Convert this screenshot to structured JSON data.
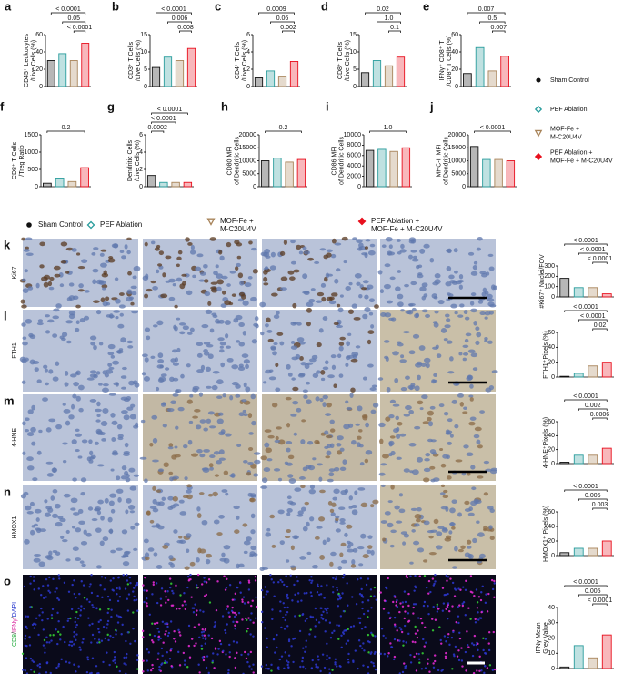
{
  "legend": [
    {
      "name": [
        "Sham Control"
      ],
      "color": "#111111",
      "marker": "circle"
    },
    {
      "name": [
        "PEF Ablation"
      ],
      "color": "#2a9d9d",
      "marker": "diamond-open"
    },
    {
      "name": [
        "MOF-Fe +",
        "M-C20U4V"
      ],
      "color": "#a8845a",
      "marker": "triangle-open"
    },
    {
      "name": [
        "PEF Ablation +",
        "MOF-Fe + M-C20U4V"
      ],
      "color": "#e8101e",
      "marker": "diamond"
    }
  ],
  "chart_data": [
    {
      "type": "bar",
      "panel": "a",
      "ylabel": [
        "CD45⁺ Leukocytes",
        "/Live Cells (%)"
      ],
      "ylim": [
        0,
        60
      ],
      "yticks": [
        0,
        20,
        40,
        60
      ],
      "values": [
        30,
        38,
        30,
        50
      ],
      "comparisons": [
        {
          "groups": [
            0,
            3
          ],
          "label": "< 0.0001"
        },
        {
          "groups": [
            1,
            3
          ],
          "label": "0.05"
        },
        {
          "groups": [
            2,
            3
          ],
          "label": "< 0.0001"
        }
      ]
    },
    {
      "type": "bar",
      "panel": "b",
      "ylabel": [
        "CD3⁺ T Cells",
        "/Live Cells (%)"
      ],
      "ylim": [
        0,
        15
      ],
      "yticks": [
        0,
        5,
        10,
        15
      ],
      "values": [
        5.5,
        8.5,
        7.5,
        11
      ],
      "comparisons": [
        {
          "groups": [
            0,
            3
          ],
          "label": "< 0.0001"
        },
        {
          "groups": [
            1,
            3
          ],
          "label": "0.006"
        },
        {
          "groups": [
            2,
            3
          ],
          "label": "0.008"
        }
      ]
    },
    {
      "type": "bar",
      "panel": "c",
      "ylabel": [
        "CD4⁺ T Cells",
        "/Live Cells (%)"
      ],
      "ylim": [
        0,
        6
      ],
      "yticks": [
        0,
        2,
        4,
        6
      ],
      "values": [
        1,
        1.8,
        1.2,
        2.9
      ],
      "comparisons": [
        {
          "groups": [
            0,
            3
          ],
          "label": "0.0009"
        },
        {
          "groups": [
            1,
            3
          ],
          "label": "0.06"
        },
        {
          "groups": [
            2,
            3
          ],
          "label": "0.002"
        }
      ]
    },
    {
      "type": "bar",
      "panel": "d",
      "ylabel": [
        "CD8⁺ T Cells",
        "/Live Cells (%)"
      ],
      "ylim": [
        0,
        15
      ],
      "yticks": [
        0,
        5,
        10,
        15
      ],
      "values": [
        4,
        7.5,
        6,
        8.5
      ],
      "comparisons": [
        {
          "groups": [
            0,
            3
          ],
          "label": "0.02"
        },
        {
          "groups": [
            1,
            3
          ],
          "label": "1.0"
        },
        {
          "groups": [
            2,
            3
          ],
          "label": "0.1"
        }
      ]
    },
    {
      "type": "bar",
      "panel": "e",
      "ylabel": [
        "IFNγ⁺ CD8⁺ T",
        "/CD8⁺ T Cells (%)"
      ],
      "ylim": [
        0,
        60
      ],
      "yticks": [
        0,
        20,
        40,
        60
      ],
      "values": [
        15,
        45,
        18,
        35
      ],
      "comparisons": [
        {
          "groups": [
            0,
            3
          ],
          "label": "0.007"
        },
        {
          "groups": [
            1,
            3
          ],
          "label": "0.5"
        },
        {
          "groups": [
            2,
            3
          ],
          "label": "0.007"
        }
      ]
    },
    {
      "type": "bar",
      "panel": "f",
      "ylabel": [
        "CD8⁺ T Cells",
        "/Treg Ratio"
      ],
      "ylim": [
        0,
        1500
      ],
      "yticks": [
        0,
        500,
        1000,
        1500
      ],
      "values": [
        100,
        250,
        150,
        550
      ],
      "comparisons": [
        {
          "groups": [
            0,
            3
          ],
          "label": "0.2"
        }
      ]
    },
    {
      "type": "bar",
      "panel": "g",
      "ylabel": [
        "Dendritic Cells",
        "/Live Cells (%)"
      ],
      "ylim": [
        0,
        6
      ],
      "yticks": [
        0,
        2,
        4,
        6
      ],
      "values": [
        1.3,
        0.5,
        0.5,
        0.5
      ],
      "comparisons": [
        {
          "groups": [
            0,
            3
          ],
          "label": "< 0.0001"
        },
        {
          "groups": [
            0,
            2
          ],
          "label": "< 0.0001"
        },
        {
          "groups": [
            0,
            1
          ],
          "label": "0.0002"
        }
      ]
    },
    {
      "type": "bar",
      "panel": "h",
      "ylabel": [
        "CD80 MFI",
        "of Dendritic Cells"
      ],
      "ylim": [
        0,
        20000
      ],
      "yticks": [
        0,
        5000,
        10000,
        15000,
        20000
      ],
      "values": [
        10000,
        11000,
        9500,
        10500
      ],
      "comparisons": [
        {
          "groups": [
            0,
            3
          ],
          "label": "0.2"
        }
      ]
    },
    {
      "type": "bar",
      "panel": "i",
      "ylabel": [
        "CD86 MFI",
        "of Dendritic Cells"
      ],
      "ylim": [
        0,
        10000
      ],
      "yticks": [
        0,
        2000,
        4000,
        6000,
        8000,
        10000
      ],
      "values": [
        7000,
        7200,
        6800,
        7500
      ],
      "comparisons": [
        {
          "groups": [
            0,
            3
          ],
          "label": "1.0"
        }
      ]
    },
    {
      "type": "bar",
      "panel": "j",
      "ylabel": [
        "MHC-II MFI",
        "of Dendritic Cells"
      ],
      "ylim": [
        0,
        20000
      ],
      "yticks": [
        0,
        5000,
        10000,
        15000,
        20000
      ],
      "values": [
        15500,
        10500,
        10500,
        10000
      ],
      "comparisons": [
        {
          "groups": [
            0,
            3
          ],
          "label": "< 0.0001"
        }
      ]
    },
    {
      "type": "bar",
      "panel": "k",
      "row_label": [
        {
          "text": "Ki67",
          "color": "#222222"
        }
      ],
      "ylabel": [
        "#Ki67⁺ Nuclei/FOV"
      ],
      "ylim": [
        0,
        300
      ],
      "yticks": [
        0,
        100,
        200,
        300
      ],
      "values": [
        180,
        90,
        90,
        30
      ],
      "comparisons": [
        {
          "groups": [
            0,
            3
          ],
          "label": "< 0.0001"
        },
        {
          "groups": [
            1,
            3
          ],
          "label": "< 0.0001"
        },
        {
          "groups": [
            2,
            3
          ],
          "label": "< 0.0001"
        }
      ]
    },
    {
      "type": "bar",
      "panel": "l",
      "row_label": [
        {
          "text": "FTH1",
          "color": "#222222"
        }
      ],
      "ylabel": [
        "FTH1⁺Pixels (%)"
      ],
      "ylim": [
        0,
        60
      ],
      "yticks": [
        0,
        20,
        40,
        60
      ],
      "values": [
        1,
        5,
        15,
        20
      ],
      "comparisons": [
        {
          "groups": [
            0,
            3
          ],
          "label": "< 0.0001"
        },
        {
          "groups": [
            1,
            3
          ],
          "label": "< 0.0001"
        },
        {
          "groups": [
            2,
            3
          ],
          "label": "0.02"
        }
      ]
    },
    {
      "type": "bar",
      "panel": "m",
      "row_label": [
        {
          "text": "4-HNE",
          "color": "#222222"
        }
      ],
      "ylabel": [
        "4-HNE⁺Pixels (%)"
      ],
      "ylim": [
        0,
        60
      ],
      "yticks": [
        0,
        20,
        40,
        60
      ],
      "values": [
        2,
        12,
        12,
        22
      ],
      "comparisons": [
        {
          "groups": [
            0,
            3
          ],
          "label": "< 0.0001"
        },
        {
          "groups": [
            1,
            3
          ],
          "label": "0.002"
        },
        {
          "groups": [
            2,
            3
          ],
          "label": "0.0006"
        }
      ]
    },
    {
      "type": "bar",
      "panel": "n",
      "row_label": [
        {
          "text": "HMOX1",
          "color": "#222222"
        }
      ],
      "ylabel": [
        "HMOX1⁺ Pixels (%)"
      ],
      "ylim": [
        0,
        60
      ],
      "yticks": [
        0,
        20,
        40,
        60
      ],
      "values": [
        4,
        10,
        10,
        20
      ],
      "comparisons": [
        {
          "groups": [
            0,
            3
          ],
          "label": "< 0.0001"
        },
        {
          "groups": [
            1,
            3
          ],
          "label": "0.005"
        },
        {
          "groups": [
            2,
            3
          ],
          "label": "0.003"
        }
      ]
    },
    {
      "type": "bar",
      "panel": "o",
      "row_label": [
        {
          "text": "CD8",
          "color": "#1fa83a"
        },
        {
          "text": "/",
          "color": "#222222"
        },
        {
          "text": "IFNγ",
          "color": "#d81b9a"
        },
        {
          "text": "/",
          "color": "#222222"
        },
        {
          "text": "DAPI",
          "color": "#2233cc"
        }
      ],
      "ylabel": [
        "IFNγ Mean",
        "Grey Value"
      ],
      "ylim": [
        0,
        40
      ],
      "yticks": [
        0,
        10,
        20,
        30,
        40
      ],
      "values": [
        1,
        15,
        7,
        22
      ],
      "comparisons": [
        {
          "groups": [
            0,
            3
          ],
          "label": "< 0.0001"
        },
        {
          "groups": [
            1,
            3
          ],
          "label": "0.005"
        },
        {
          "groups": [
            2,
            3
          ],
          "label": "< 0.0001"
        }
      ]
    }
  ]
}
